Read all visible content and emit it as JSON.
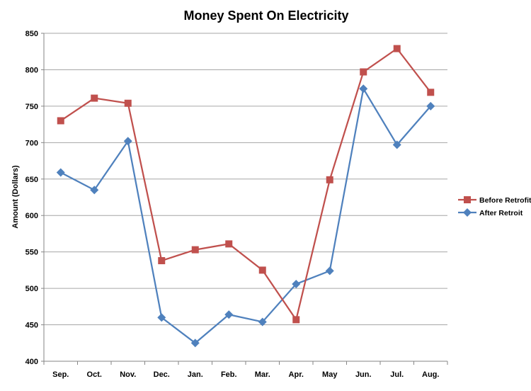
{
  "chart_data": {
    "type": "line",
    "title": "Money Spent On Electricity",
    "xlabel": "",
    "ylabel": "Amount (Dollars)",
    "ylim": [
      400,
      850
    ],
    "yticks": [
      400,
      450,
      500,
      550,
      600,
      650,
      700,
      750,
      800,
      850
    ],
    "grid": true,
    "legend_position": "right",
    "categories": [
      "Sep.",
      "Oct.",
      "Nov.",
      "Dec.",
      "Jan.",
      "Feb.",
      "Mar.",
      "Apr.",
      "May",
      "Jun.",
      "Jul.",
      "Aug."
    ],
    "series": [
      {
        "name": "Before Retrofit",
        "color": "#C0504D",
        "marker": "square",
        "values": [
          730,
          761,
          754,
          538,
          553,
          561,
          525,
          457,
          649,
          797,
          829,
          769
        ]
      },
      {
        "name": "After Retroit",
        "color": "#4F81BD",
        "marker": "diamond",
        "values": [
          659,
          635,
          702,
          460,
          425,
          464,
          454,
          506,
          524,
          774,
          697,
          750
        ]
      }
    ]
  }
}
